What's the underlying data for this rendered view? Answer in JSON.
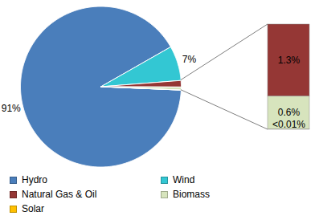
{
  "chart_data": {
    "type": "pie",
    "categories": [
      "Hydro",
      "Wind",
      "Natural Gas & Oil",
      "Biomass",
      "Solar"
    ],
    "values": [
      91,
      7,
      1.3,
      0.6,
      0.005
    ],
    "value_labels": [
      "91%",
      "7%",
      "1.3%",
      "0.6%",
      "<0.01%"
    ],
    "colors": [
      "#4a7ebb",
      "#33c7d3",
      "#953735",
      "#d7e4bd",
      "#ffc000"
    ],
    "data_labels": true,
    "legend": "bottom"
  }
}
